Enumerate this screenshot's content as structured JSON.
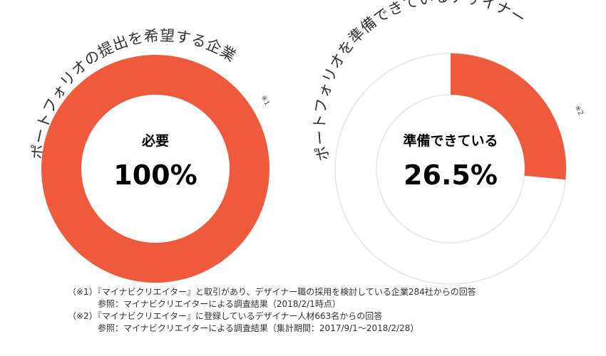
{
  "chart_data": [
    {
      "type": "pie",
      "title": "ポートフォリオの提出を希望する企業",
      "title_note": "※1",
      "slices": [
        {
          "label": "必要",
          "value": 100
        }
      ],
      "center_label": "必要",
      "center_value": "100%",
      "colors": {
        "filled": "#f05a3c",
        "remainder": "#eeeeee"
      }
    },
    {
      "type": "pie",
      "title": "ポートフォリオを準備できているデザイナー",
      "title_note": "※2",
      "slices": [
        {
          "label": "準備できている",
          "value": 26.5
        },
        {
          "label": "",
          "value": 73.5
        }
      ],
      "center_label": "準備できている",
      "center_value": "26.5%",
      "colors": {
        "filled": "#f05a3c",
        "remainder": "#ffffff",
        "ring_outline": "#e6e6e6"
      }
    }
  ],
  "footnotes": [
    {
      "line1": "（※1）『マイナビクリエイター』と取引があり、デザイナー職の採用を検討している企業284社からの回答",
      "line2": "参照：マイナビクリエイターによる調査結果（2018/2/1時点）"
    },
    {
      "line1": "（※2）『マイナビクリエイター』に登録しているデザイナー人材663名からの回答",
      "line2": "参照：マイナビクリエイターによる調査結果（集計期間：2017/9/1〜2018/2/28）"
    }
  ]
}
